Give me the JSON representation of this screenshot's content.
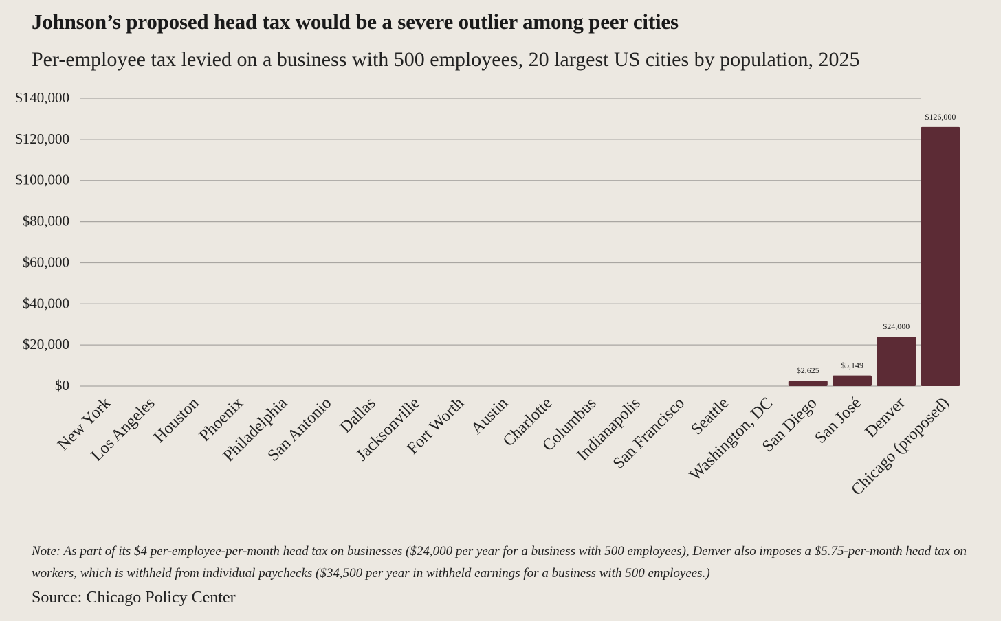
{
  "title": "Johnson’s proposed head tax would be a severe outlier among peer cities",
  "subtitle": "Per-employee tax levied on a business with 500 employees, 20 largest US cities by population, 2025",
  "note": "Note: As part of its $4 per-employee-per-month head tax on businesses ($24,000 per year for a business with 500 employees), Denver also imposes a $5.75-per-month head tax on workers, which is withheld from individual paychecks ($34,500 per year in withheld earnings for a business with 500 employees.)",
  "source": "Source: Chicago Policy Center",
  "colors": {
    "bar": "#5c2b35",
    "grid": "#a9a6a2",
    "background": "#ece8e1"
  },
  "chart_data": {
    "type": "bar",
    "categories": [
      "New York",
      "Los Angeles",
      "Houston",
      "Phoenix",
      "Philadelphia",
      "San Antonio",
      "Dallas",
      "Jacksonville",
      "Fort Worth",
      "Austin",
      "Charlotte",
      "Columbus",
      "Indianapolis",
      "San Francisco",
      "Seattle",
      "Washington, DC",
      "San Diego",
      "San José",
      "Denver",
      "Chicago (proposed)"
    ],
    "values": [
      0,
      0,
      0,
      0,
      0,
      0,
      0,
      0,
      0,
      0,
      0,
      0,
      0,
      0,
      0,
      0,
      2625,
      5149,
      24000,
      126000
    ],
    "data_labels": [
      "",
      "",
      "",
      "",
      "",
      "",
      "",
      "",
      "",
      "",
      "",
      "",
      "",
      "",
      "",
      "",
      "$2,625",
      "$5,149",
      "$24,000",
      "$126,000"
    ],
    "ylim": [
      0,
      140000
    ],
    "yticks": [
      0,
      20000,
      40000,
      60000,
      80000,
      100000,
      120000,
      140000
    ],
    "ytick_labels": [
      "$0",
      "$20,000",
      "$40,000",
      "$60,000",
      "$80,000",
      "$100,000",
      "$120,000",
      "$140,000"
    ],
    "grid": true,
    "xlabel": "",
    "ylabel": ""
  }
}
